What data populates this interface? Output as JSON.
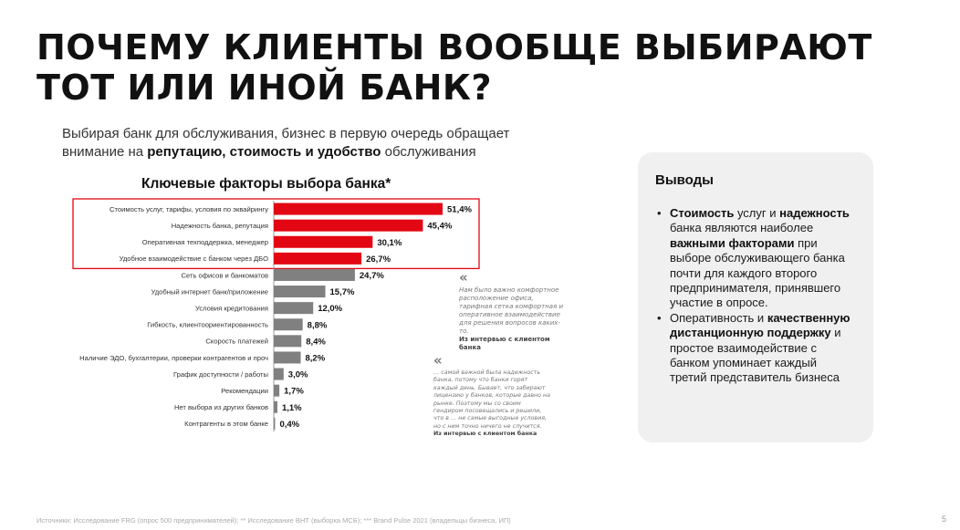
{
  "title": {
    "line1": "ПОЧЕМУ КЛИЕНТЫ ВООБЩЕ ВЫБИРАЮТ",
    "line2": "ТОТ ИЛИ ИНОЙ БАНК?"
  },
  "intro": {
    "part1": "Выбирая банк для обслуживания, бизнес в первую очередь обращает внимание на ",
    "bold": "репутацию, стоимость и удобство",
    "part2": " обслуживания"
  },
  "chart_title": "Ключевые факторы выбора банка*",
  "colors": {
    "highlight": "#e30613",
    "bar": "#808080",
    "highlight_border": "#e30613"
  },
  "chart_data": {
    "type": "bar",
    "orientation": "horizontal",
    "categories": [
      "Стоимость услуг, тарифы, условия по эквайрингу",
      "Надежность банка, репутация",
      "Оперативная техподдержка, менеджер",
      "Удобное взаимодействие с банком через ДБО",
      "Сеть офисов и банкоматов",
      "Удобный интернет банк/приложение",
      "Условия кредитования",
      "Гибкость, клиентоориентированность",
      "Скорость платежей",
      "Наличие ЭДО, бухгалтерии, проверки контрагентов и проч",
      "График доступности / работы",
      "Рекомендации",
      "Нет выбора из других банков",
      "Контрагенты в этом банке"
    ],
    "values": [
      51.4,
      45.4,
      30.1,
      26.7,
      24.7,
      15.7,
      12.0,
      8.8,
      8.4,
      8.2,
      3.0,
      1.7,
      1.1,
      0.4
    ],
    "labels": [
      "51,4%",
      "45,4%",
      "30,1%",
      "26,7%",
      "24,7%",
      "15,7%",
      "12,0%",
      "8,8%",
      "8,4%",
      "8,2%",
      "3,0%",
      "1,7%",
      "1,1%",
      "0,4%"
    ],
    "highlighted_count": 4,
    "title": "Ключевые факторы выбора банка*"
  },
  "quotes": [
    {
      "text": "Нам было важно комфортное расположение офиса, тарифная сетка комфортная и оперативное взаимодействие для решения вопросов каких-то.",
      "source": "Из интервью с клиентом банка"
    },
    {
      "text": "… самой важной была надежность банка, потому что банки горят каждый день. Бывает, что забирают лицензию у банков, которые давно на рынке. Поэтому мы со своим гендиром посовещались и решили, что в … не самые выгодные условия, но с ним точно ничего не случится.",
      "source": "Из интервью с клиентом банка"
    }
  ],
  "conclusions": {
    "heading": "Выводы",
    "item1": {
      "b1": "Стоимость",
      "t1": " услуг и ",
      "b2": "надежность",
      "t2": " банка являются наиболее ",
      "b3": "важными факторами",
      "t3": " при выборе обслуживающего банка почти для каждого второго предпринимателя, принявшего участие в опросе."
    },
    "item2": {
      "t1": "Оперативность и ",
      "b1": "качественную дистанционную поддержку",
      "t2": " и простое взаимодействие с банком упоминает каждый третий представитель бизнеса"
    }
  },
  "footnote": "Источники:   Исследование FRG (опрос 500 предпринимателей); ** Исследование ВНТ (выборка МСБ); *** Brand Pulse 2021 (владельцы бизнеса, ИП)",
  "page_number": "5"
}
